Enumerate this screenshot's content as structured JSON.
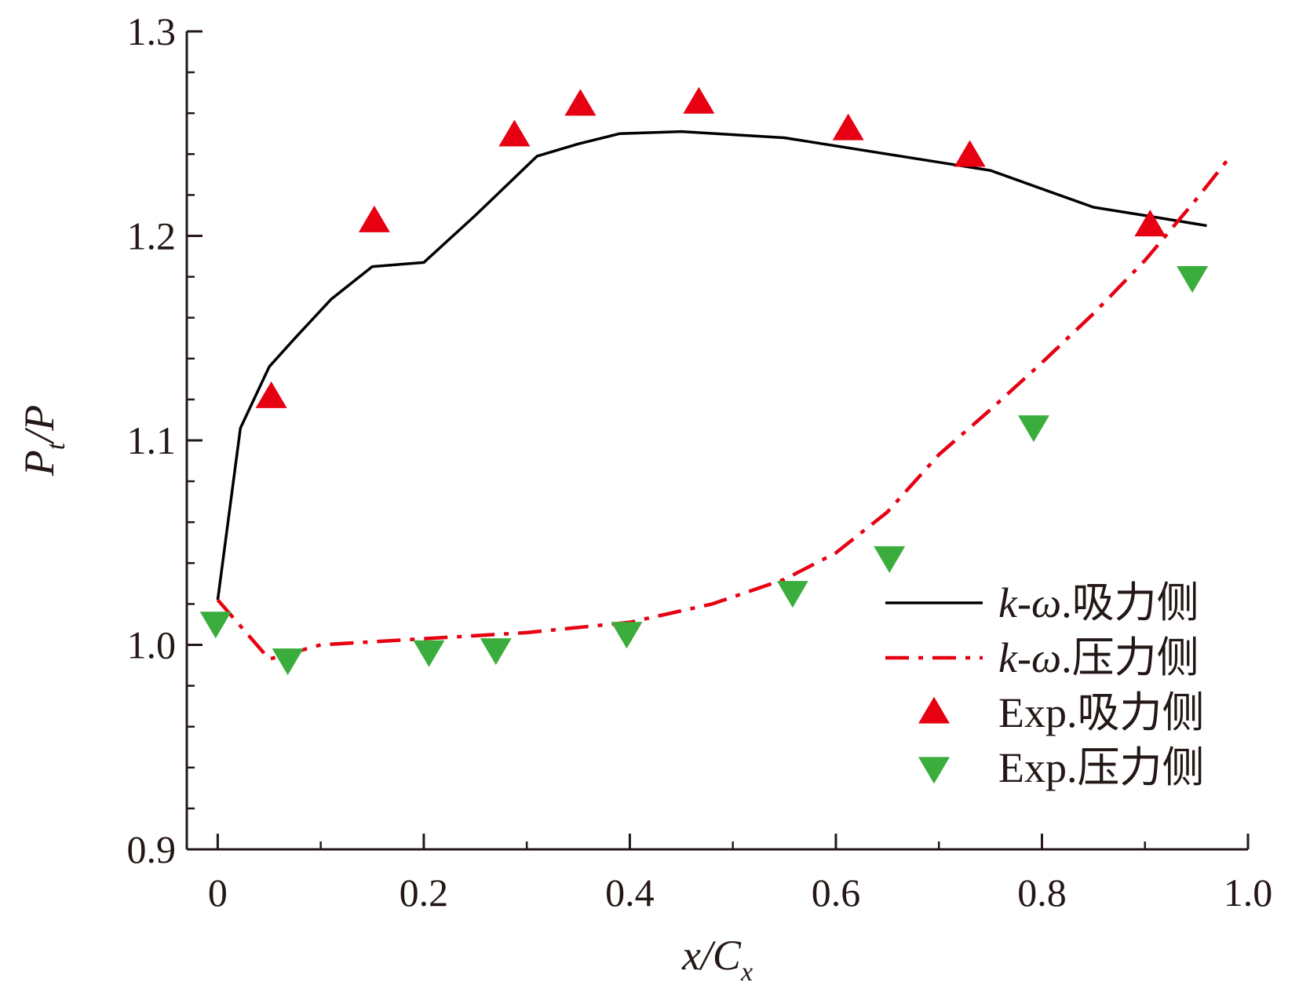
{
  "chart_data": {
    "type": "line",
    "xlabel": {
      "main": "x/C",
      "sub": "x"
    },
    "ylabel": {
      "main": "P",
      "sub": "t",
      "tail": "/P"
    },
    "xlim": [
      -0.03,
      1.0
    ],
    "ylim": [
      0.9,
      1.3
    ],
    "xticks": [
      {
        "value": 0,
        "label": "0"
      },
      {
        "value": 0.2,
        "label": "0.2"
      },
      {
        "value": 0.4,
        "label": "0.4"
      },
      {
        "value": 0.6,
        "label": "0.6"
      },
      {
        "value": 0.8,
        "label": "0.8"
      },
      {
        "value": 1.0,
        "label": "1.0"
      }
    ],
    "yticks": [
      {
        "value": 0.9,
        "label": "0.9"
      },
      {
        "value": 1.0,
        "label": "1.0"
      },
      {
        "value": 1.1,
        "label": "1.1"
      },
      {
        "value": 1.2,
        "label": "1.2"
      },
      {
        "value": 1.3,
        "label": "1.3"
      }
    ],
    "x_minor_step": 0.1,
    "y_minor_step": 0.02,
    "legend_position": "bottom-right",
    "series": [
      {
        "name": "k-ω.吸力侧",
        "legend_italic": "k-ω",
        "legend_rest": ".吸力侧",
        "kind": "line",
        "style": "solid",
        "color": "#000000",
        "x": [
          0.0,
          0.022,
          0.05,
          0.075,
          0.11,
          0.15,
          0.2,
          0.25,
          0.31,
          0.35,
          0.39,
          0.45,
          0.55,
          0.65,
          0.7,
          0.75,
          0.8,
          0.85,
          0.9,
          0.96
        ],
        "y": [
          1.022,
          1.106,
          1.136,
          1.15,
          1.169,
          1.185,
          1.187,
          1.21,
          1.239,
          1.245,
          1.25,
          1.251,
          1.248,
          1.24,
          1.236,
          1.232,
          1.223,
          1.214,
          1.21,
          1.205
        ]
      },
      {
        "name": "k-ω.压力侧",
        "legend_italic": "k-ω",
        "legend_rest": ".压力侧",
        "kind": "line",
        "style": "dashdot",
        "color": "#e60012",
        "x": [
          0.0,
          0.05,
          0.1,
          0.2,
          0.3,
          0.4,
          0.48,
          0.55,
          0.6,
          0.65,
          0.7,
          0.75,
          0.8,
          0.85,
          0.9,
          0.95,
          0.98
        ],
        "y": [
          1.022,
          0.993,
          1.0,
          1.003,
          1.006,
          1.011,
          1.02,
          1.032,
          1.045,
          1.065,
          1.093,
          1.115,
          1.138,
          1.162,
          1.188,
          1.218,
          1.237
        ]
      },
      {
        "name": "Exp.吸力侧",
        "legend_italic": "",
        "legend_rest": "Exp.吸力侧",
        "kind": "scatter",
        "marker": "triangle-up",
        "color": "#e60012",
        "x": [
          0.052,
          0.152,
          0.288,
          0.352,
          0.467,
          0.612,
          0.73,
          0.905
        ],
        "y": [
          1.121,
          1.207,
          1.249,
          1.264,
          1.265,
          1.252,
          1.239,
          1.205
        ]
      },
      {
        "name": "Exp.压力侧",
        "legend_italic": "",
        "legend_rest": "Exp.压力侧",
        "kind": "scatter",
        "marker": "triangle-down",
        "color": "#3aad3c",
        "x": [
          -0.002,
          0.068,
          0.205,
          0.27,
          0.397,
          0.558,
          0.652,
          0.792,
          0.946
        ],
        "y": [
          1.011,
          0.993,
          0.997,
          0.998,
          1.006,
          1.026,
          1.043,
          1.107,
          1.18
        ]
      }
    ]
  }
}
